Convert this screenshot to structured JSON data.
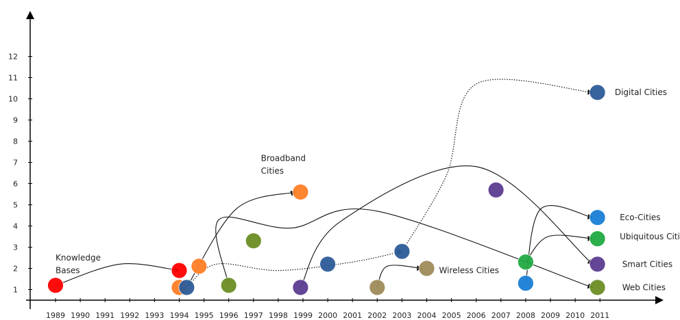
{
  "chart_data": {
    "type": "scatter",
    "title": "",
    "xlabel": "",
    "ylabel": "",
    "x_ticks": [
      "1989",
      "1990",
      "1991",
      "1992",
      "1993",
      "1994",
      "1995",
      "1996",
      "1997",
      "1998",
      "1999",
      "2000",
      "2001",
      "2002",
      "2003",
      "2004",
      "2005",
      "2006",
      "2007",
      "2008",
      "2009",
      "2010",
      "2011"
    ],
    "y_ticks": [
      1,
      2,
      3,
      4,
      5,
      6,
      7,
      8,
      9,
      10,
      11,
      12
    ],
    "ylim": [
      0,
      13
    ],
    "grid": false,
    "points": [
      {
        "x": 1989.0,
        "y": 1.2,
        "color": "#ff0000"
      },
      {
        "x": 1994.0,
        "y": 1.9,
        "color": "#ff0000"
      },
      {
        "x": 1994.0,
        "y": 1.1,
        "color": "#ff7f27"
      },
      {
        "x": 1994.3,
        "y": 1.1,
        "color": "#2e5c99"
      },
      {
        "x": 1994.8,
        "y": 2.1,
        "color": "#ff7f27"
      },
      {
        "x": 1996.0,
        "y": 1.2,
        "color": "#6b8e23"
      },
      {
        "x": 1997.0,
        "y": 3.3,
        "color": "#6b8e23"
      },
      {
        "x": 1998.9,
        "y": 5.6,
        "color": "#ff7f27"
      },
      {
        "x": 1998.9,
        "y": 1.1,
        "color": "#5c3d91"
      },
      {
        "x": 2000.0,
        "y": 2.2,
        "color": "#2e5c99"
      },
      {
        "x": 2002.0,
        "y": 1.1,
        "color": "#a08c5a"
      },
      {
        "x": 2003.0,
        "y": 2.8,
        "color": "#2e5c99"
      },
      {
        "x": 2004.0,
        "y": 2.0,
        "color": "#a08c5a"
      },
      {
        "x": 2006.8,
        "y": 5.7,
        "color": "#5c3d91"
      },
      {
        "x": 2008.0,
        "y": 2.3,
        "color": "#22aa44"
      },
      {
        "x": 2008.0,
        "y": 1.3,
        "color": "#1a7fd6"
      },
      {
        "x": 2010.9,
        "y": 10.3,
        "color": "#2e5c99"
      },
      {
        "x": 2010.9,
        "y": 4.4,
        "color": "#1a7fd6"
      },
      {
        "x": 2010.9,
        "y": 3.4,
        "color": "#22aa44"
      },
      {
        "x": 2010.9,
        "y": 2.2,
        "color": "#5c3d91"
      },
      {
        "x": 2010.9,
        "y": 1.1,
        "color": "#6b8e23"
      }
    ],
    "curves": [
      {
        "style": "solid",
        "arrow": true,
        "points": [
          [
            1989.0,
            1.2
          ],
          [
            1991.6,
            2.2
          ],
          [
            1994.0,
            1.9
          ]
        ]
      },
      {
        "style": "solid",
        "arrow": true,
        "points": [
          [
            1994.3,
            1.1
          ],
          [
            1996.3,
            4.8
          ],
          [
            1998.7,
            5.6
          ]
        ]
      },
      {
        "style": "solid",
        "arrow": true,
        "points": [
          [
            1996.0,
            1.2
          ],
          [
            1995.6,
            4.3
          ],
          [
            1998.5,
            3.9
          ],
          [
            2002.0,
            4.7
          ],
          [
            2010.7,
            1.1
          ]
        ]
      },
      {
        "style": "solid",
        "arrow": true,
        "points": [
          [
            1998.9,
            1.1
          ],
          [
            2000.5,
            4.2
          ],
          [
            2006.0,
            6.8
          ],
          [
            2010.7,
            2.2
          ]
        ]
      },
      {
        "style": "solid",
        "arrow": true,
        "points": [
          [
            2002.0,
            1.1
          ],
          [
            2002.4,
            2.1
          ],
          [
            2003.8,
            2.0
          ]
        ]
      },
      {
        "style": "solid",
        "arrow": true,
        "points": [
          [
            2008.0,
            2.3
          ],
          [
            2008.9,
            3.5
          ],
          [
            2010.7,
            3.4
          ]
        ]
      },
      {
        "style": "solid",
        "arrow": true,
        "points": [
          [
            2008.0,
            1.3
          ],
          [
            2008.6,
            4.8
          ],
          [
            2010.7,
            4.4
          ]
        ]
      },
      {
        "style": "dotted",
        "arrow": true,
        "points": [
          [
            1994.3,
            1.1
          ],
          [
            1995.5,
            2.2
          ],
          [
            1998.0,
            1.9
          ],
          [
            2001.0,
            2.3
          ],
          [
            2003.0,
            2.8
          ]
        ]
      },
      {
        "style": "dotted",
        "arrow": true,
        "points": [
          [
            2003.0,
            2.8
          ],
          [
            2004.8,
            6.4
          ],
          [
            2006.0,
            10.7
          ],
          [
            2010.7,
            10.3
          ]
        ]
      }
    ],
    "labels": [
      {
        "text": "Digital Cities",
        "x": 2011.6,
        "y": 10.3
      },
      {
        "text": "Broadband",
        "x": 1997.3,
        "y": 7.2
      },
      {
        "text": "Cities",
        "x": 1997.3,
        "y": 6.6
      },
      {
        "text": "Knowledge",
        "x": 1989.0,
        "y": 2.5
      },
      {
        "text": "Bases",
        "x": 1989.0,
        "y": 1.9
      },
      {
        "text": "Eco-Cities",
        "x": 2011.8,
        "y": 4.4
      },
      {
        "text": "Ubiquitous Cities",
        "x": 2011.8,
        "y": 3.5
      },
      {
        "text": "Smart Cities",
        "x": 2011.9,
        "y": 2.2
      },
      {
        "text": "Wireless Cities",
        "x": 2004.5,
        "y": 1.9
      },
      {
        "text": "Web Cities",
        "x": 2011.9,
        "y": 1.1
      }
    ]
  }
}
